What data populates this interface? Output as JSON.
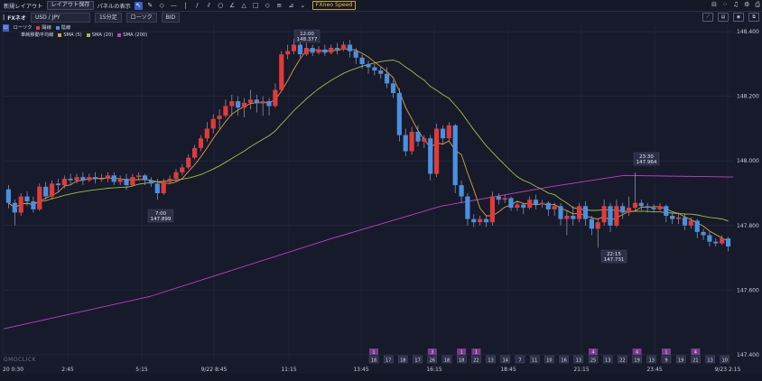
{
  "toolbar": {
    "new_layout": "新規レイアウト",
    "save_layout": "レイアウト保存",
    "panel_display": "パネルの表示",
    "fxneo_speed": "FXneo Speed",
    "tools": [
      "cursor-icon",
      "pencil-icon",
      "marker-icon",
      "hline-icon",
      "vline-icon",
      "trendline-icon",
      "channel-icon",
      "circle-icon",
      "angle-icon",
      "triangle-icon",
      "rectangle-icon",
      "diamond-icon",
      "lines-icon",
      "measure-icon",
      "dropdown-icon"
    ]
  },
  "instrument": {
    "badge": "|",
    "name": "FXネオ",
    "pair": "USD / JPY",
    "timeframe": "15分足",
    "chart_type": "ローソク",
    "price_side": "BID"
  },
  "legend": {
    "row1": [
      "ローソク",
      "陽線",
      "陰線"
    ],
    "row2_label": "単純移動平均線",
    "sma": [
      "SMA (5)",
      "SMA (20)",
      "SMA (200)"
    ]
  },
  "colors": {
    "background": "#171a2a",
    "bull": "#e23a3a",
    "bear": "#4a90e2",
    "sma5": "#e0a040",
    "sma20": "#9ec23f",
    "sma200": "#c03ed0"
  },
  "chart_data": {
    "type": "candlestick",
    "y_ticks": [
      "148.400",
      "148.200",
      "148.000",
      "147.800",
      "147.600",
      "147.400"
    ],
    "ylim": [
      147.4,
      148.4
    ],
    "x_ticks": [
      "20 0:30",
      "2:45",
      "5:15",
      "9/22 8:45",
      "11:15",
      "13:45",
      "16:15",
      "18:45",
      "21:15",
      "23:45",
      "9/23 2:15"
    ],
    "annotations": [
      {
        "time": "12:00",
        "price": "148.377"
      },
      {
        "time": "7:00",
        "price": "147.899"
      },
      {
        "time": "23:30",
        "price": "147.964"
      },
      {
        "time": "22:15",
        "price": "147.731"
      }
    ],
    "bottom_badges": [
      "18",
      "17",
      "18",
      "17",
      "26",
      "18",
      "18",
      "22",
      "13",
      "14",
      "7",
      "11",
      "10",
      "16",
      "13",
      "25",
      "13",
      "22",
      "19",
      "13",
      "9",
      "19",
      "21",
      "13",
      "10"
    ],
    "bottom_flags": [
      "1",
      "3",
      "1",
      "1",
      "4",
      "4",
      "1",
      "4"
    ],
    "candles": [
      [
        147.912,
        147.87,
        147.853,
        147.925
      ],
      [
        147.87,
        147.84,
        147.8,
        147.88
      ],
      [
        147.84,
        147.89,
        147.83,
        147.9
      ],
      [
        147.89,
        147.875,
        147.86,
        147.905
      ],
      [
        147.875,
        147.85,
        147.84,
        147.89
      ],
      [
        147.85,
        147.92,
        147.845,
        147.93
      ],
      [
        147.92,
        147.89,
        147.88,
        147.935
      ],
      [
        147.89,
        147.93,
        147.88,
        147.94
      ],
      [
        147.93,
        147.925,
        147.905,
        147.945
      ],
      [
        147.925,
        147.945,
        147.915,
        147.955
      ],
      [
        147.945,
        147.94,
        147.925,
        147.96
      ],
      [
        147.94,
        147.95,
        147.93,
        147.96
      ],
      [
        147.95,
        147.94,
        147.925,
        147.965
      ],
      [
        147.94,
        147.95,
        147.935,
        147.96
      ],
      [
        147.95,
        147.945,
        147.93,
        147.965
      ],
      [
        147.945,
        147.945,
        147.935,
        147.96
      ],
      [
        147.945,
        147.955,
        147.935,
        147.965
      ],
      [
        147.955,
        147.935,
        147.925,
        147.965
      ],
      [
        147.935,
        147.945,
        147.925,
        147.955
      ],
      [
        147.945,
        147.925,
        147.91,
        147.96
      ],
      [
        147.925,
        147.95,
        147.92,
        147.96
      ],
      [
        147.95,
        147.955,
        147.94,
        147.965
      ],
      [
        147.955,
        147.94,
        147.925,
        147.96
      ],
      [
        147.94,
        147.93,
        147.92,
        147.95
      ],
      [
        147.93,
        147.9,
        147.88,
        147.945
      ],
      [
        147.9,
        147.935,
        147.895,
        147.945
      ],
      [
        147.935,
        147.945,
        147.93,
        147.955
      ],
      [
        147.945,
        147.965,
        147.935,
        147.975
      ],
      [
        147.965,
        147.98,
        147.955,
        147.99
      ],
      [
        147.98,
        148.01,
        147.975,
        148.02
      ],
      [
        148.01,
        148.04,
        148.005,
        148.05
      ],
      [
        148.04,
        148.07,
        148.03,
        148.08
      ],
      [
        148.07,
        148.1,
        148.06,
        148.12
      ],
      [
        148.1,
        148.13,
        148.085,
        148.145
      ],
      [
        148.13,
        148.14,
        148.1,
        148.16
      ],
      [
        148.14,
        148.17,
        148.135,
        148.19
      ],
      [
        148.17,
        148.185,
        148.14,
        148.205
      ],
      [
        148.185,
        148.165,
        148.14,
        148.2
      ],
      [
        148.165,
        148.18,
        148.135,
        148.195
      ],
      [
        148.18,
        148.19,
        148.16,
        148.22
      ],
      [
        148.19,
        148.18,
        148.15,
        148.205
      ],
      [
        148.18,
        148.185,
        148.14,
        148.2
      ],
      [
        148.185,
        148.17,
        148.14,
        148.195
      ],
      [
        148.17,
        148.22,
        148.165,
        148.24
      ],
      [
        148.22,
        148.33,
        148.215,
        148.34
      ],
      [
        148.33,
        148.34,
        148.315,
        148.36
      ],
      [
        148.34,
        148.36,
        148.33,
        148.377
      ],
      [
        148.36,
        148.33,
        148.32,
        148.375
      ],
      [
        148.33,
        148.35,
        148.325,
        148.365
      ],
      [
        148.35,
        148.335,
        148.325,
        148.36
      ],
      [
        148.335,
        148.345,
        148.33,
        148.355
      ],
      [
        148.345,
        148.335,
        148.325,
        148.36
      ],
      [
        148.335,
        148.35,
        148.33,
        148.36
      ],
      [
        148.35,
        148.345,
        148.33,
        148.365
      ],
      [
        148.345,
        148.36,
        148.34,
        148.37
      ],
      [
        148.36,
        148.34,
        148.32,
        148.375
      ],
      [
        148.34,
        148.32,
        148.3,
        148.35
      ],
      [
        148.32,
        148.3,
        148.285,
        148.33
      ],
      [
        148.3,
        148.29,
        148.27,
        148.31
      ],
      [
        148.29,
        148.28,
        148.265,
        148.3
      ],
      [
        148.28,
        148.27,
        148.255,
        148.29
      ],
      [
        148.27,
        148.24,
        148.225,
        148.29
      ],
      [
        148.24,
        148.21,
        148.195,
        148.25
      ],
      [
        148.21,
        148.08,
        148.06,
        148.225
      ],
      [
        148.08,
        148.03,
        148.015,
        148.1
      ],
      [
        148.03,
        148.09,
        148.02,
        148.105
      ],
      [
        148.09,
        148.06,
        148.045,
        148.11
      ],
      [
        148.06,
        148.07,
        148.04,
        148.08
      ],
      [
        148.07,
        147.96,
        147.94,
        148.08
      ],
      [
        147.96,
        148.1,
        147.95,
        148.115
      ],
      [
        148.1,
        148.07,
        148.05,
        148.11
      ],
      [
        148.07,
        148.11,
        148.06,
        148.12
      ],
      [
        148.11,
        147.925,
        147.9,
        148.115
      ],
      [
        147.925,
        147.89,
        147.87,
        147.94
      ],
      [
        147.89,
        147.82,
        147.8,
        147.9
      ],
      [
        147.82,
        147.81,
        147.795,
        147.835
      ],
      [
        147.81,
        147.82,
        147.8,
        147.83
      ],
      [
        147.82,
        147.81,
        147.795,
        147.83
      ],
      [
        147.81,
        147.89,
        147.8,
        147.905
      ],
      [
        147.89,
        147.88,
        147.865,
        147.9
      ],
      [
        147.88,
        147.885,
        147.87,
        147.895
      ],
      [
        147.885,
        147.855,
        147.845,
        147.89
      ],
      [
        147.855,
        147.865,
        147.845,
        147.875
      ],
      [
        147.865,
        147.855,
        147.835,
        147.87
      ],
      [
        147.855,
        147.88,
        147.85,
        147.89
      ],
      [
        147.88,
        147.865,
        147.85,
        147.895
      ],
      [
        147.865,
        147.87,
        147.855,
        147.88
      ],
      [
        147.87,
        147.85,
        147.83,
        147.875
      ],
      [
        147.85,
        147.86,
        147.83,
        147.87
      ],
      [
        147.86,
        147.82,
        147.8,
        147.87
      ],
      [
        147.82,
        147.83,
        147.77,
        147.845
      ],
      [
        147.83,
        147.82,
        147.8,
        147.86
      ],
      [
        147.82,
        147.86,
        147.81,
        147.87
      ],
      [
        147.86,
        147.82,
        147.8,
        147.875
      ],
      [
        147.82,
        147.79,
        147.77,
        147.83
      ],
      [
        147.79,
        147.81,
        147.731,
        147.82
      ],
      [
        147.81,
        147.86,
        147.8,
        147.88
      ],
      [
        147.86,
        147.8,
        147.78,
        147.87
      ],
      [
        147.8,
        147.86,
        147.795,
        147.88
      ],
      [
        147.86,
        147.84,
        147.82,
        147.87
      ],
      [
        147.84,
        147.855,
        147.83,
        147.89
      ],
      [
        147.855,
        147.87,
        147.845,
        147.964
      ],
      [
        147.87,
        147.86,
        147.845,
        147.88
      ],
      [
        147.86,
        147.855,
        147.84,
        147.87
      ],
      [
        147.855,
        147.85,
        147.84,
        147.865
      ],
      [
        147.85,
        147.86,
        147.845,
        147.87
      ],
      [
        147.86,
        147.83,
        147.81,
        147.865
      ],
      [
        147.83,
        147.82,
        147.805,
        147.84
      ],
      [
        147.82,
        147.825,
        147.805,
        147.84
      ],
      [
        147.825,
        147.8,
        147.785,
        147.835
      ],
      [
        147.8,
        147.815,
        147.79,
        147.825
      ],
      [
        147.815,
        147.78,
        147.76,
        147.82
      ],
      [
        147.78,
        147.77,
        147.755,
        147.79
      ],
      [
        147.77,
        147.75,
        147.735,
        147.78
      ],
      [
        147.75,
        147.745,
        147.735,
        147.76
      ],
      [
        147.745,
        147.76,
        147.74,
        147.77
      ],
      [
        147.76,
        147.735,
        147.72,
        147.765
      ]
    ]
  }
}
